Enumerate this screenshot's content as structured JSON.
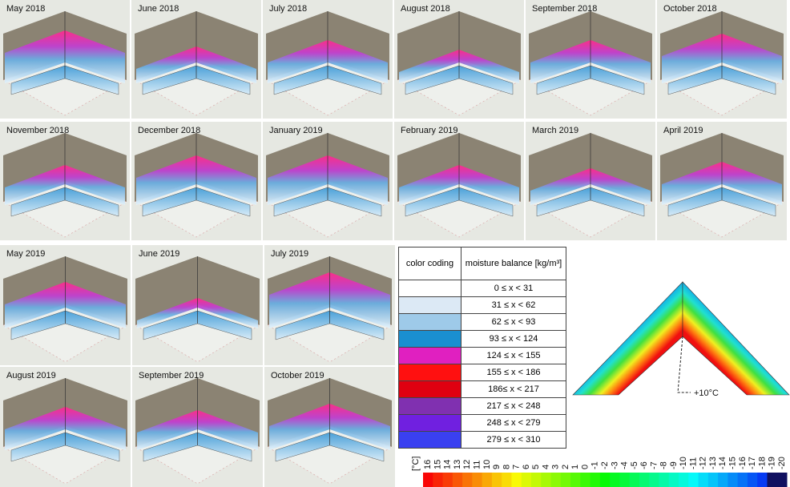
{
  "panels": [
    "May 2018",
    "June 2018",
    "July 2018",
    "August 2018",
    "September 2018",
    "October 2018",
    "November 2018",
    "December 2018",
    "January 2019",
    "February 2019",
    "March 2019",
    "April 2019",
    "May 2019",
    "June 2019",
    "July 2019",
    "August 2019",
    "September 2019",
    "October 2019"
  ],
  "table": {
    "header": [
      "color coding",
      "moisture balance [kg/m³]"
    ],
    "rows": [
      {
        "color": "#ffffff",
        "range": "0 ≤ x < 31"
      },
      {
        "color": "#dce9f5",
        "range": "31 ≤ x < 62"
      },
      {
        "color": "#9ecae9",
        "range": "62 ≤ x < 93"
      },
      {
        "color": "#1a8fd0",
        "range": "93 ≤ x < 124"
      },
      {
        "color": "#e020c0",
        "range": "124 ≤ x < 155"
      },
      {
        "color": "#ff1010",
        "range": "155 ≤ x < 186"
      },
      {
        "color": "#e00010",
        "range": "186≤ x < 217"
      },
      {
        "color": "#8030b0",
        "range": "217 ≤ x < 248"
      },
      {
        "color": "#7020e0",
        "range": "248 ≤ x < 279"
      },
      {
        "color": "#3a40f0",
        "range": "279 ≤ x < 310"
      }
    ]
  },
  "annotation": "+10°C",
  "colorbar": {
    "unit": "[°C]",
    "labels": [
      "16",
      "15",
      "14",
      "13",
      "12",
      "11",
      "10",
      "9",
      "8",
      "7",
      "6",
      "5",
      "4",
      "3",
      "2",
      "1",
      "0",
      "-1",
      "-2",
      "-3",
      "-4",
      "-5",
      "-6",
      "-7",
      "-8",
      "-9",
      "-10",
      "-11",
      "-12",
      "-13",
      "-14",
      "-15",
      "-16",
      "-17",
      "-18",
      "-19",
      "-20"
    ]
  }
}
